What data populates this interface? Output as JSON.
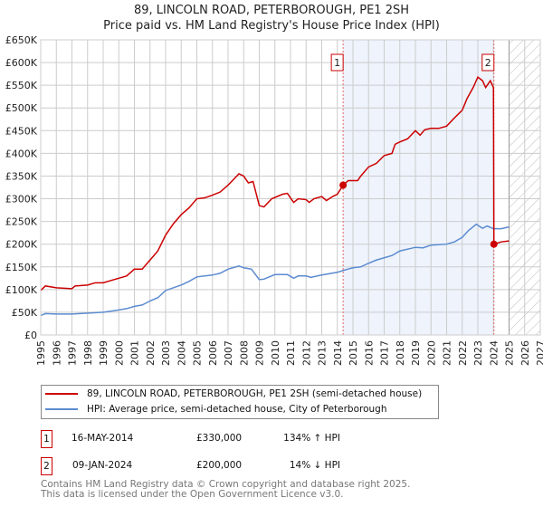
{
  "chart_data": {
    "type": "line",
    "title": "89, LINCOLN ROAD, PETERBOROUGH, PE1 2SH",
    "subtitle": "Price paid vs. HM Land Registry's House Price Index (HPI)",
    "xlim": [
      1995,
      2027
    ],
    "ylim": [
      0,
      650000
    ],
    "x_ticks": [
      "1995",
      "1996",
      "1997",
      "1998",
      "1999",
      "2000",
      "2001",
      "2002",
      "2003",
      "2004",
      "2005",
      "2006",
      "2007",
      "2008",
      "2009",
      "2010",
      "2011",
      "2012",
      "2013",
      "2014",
      "2015",
      "2016",
      "2017",
      "2018",
      "2019",
      "2020",
      "2021",
      "2022",
      "2023",
      "2024",
      "2025",
      "2026",
      "2027"
    ],
    "y_ticks": [
      "£0",
      "£50K",
      "£100K",
      "£150K",
      "£200K",
      "£250K",
      "£300K",
      "£350K",
      "£400K",
      "£450K",
      "£500K",
      "£550K",
      "£600K",
      "£650K"
    ],
    "grid": true,
    "shaded_range": [
      2014.37,
      2024.03
    ],
    "forecast_hatch_from": 2025.0,
    "series": [
      {
        "name": "89, LINCOLN ROAD, PETERBOROUGH, PE1 2SH (semi-detached house)",
        "color": "#cc0000",
        "x": [
          1995,
          1995.3,
          1996,
          1997,
          1997.2,
          1998,
          1998.5,
          1999,
          2000,
          2000.5,
          2001,
          2001.5,
          2002,
          2002.5,
          2003,
          2003.5,
          2004,
          2004.5,
          2005,
          2005.5,
          2006,
          2006.5,
          2007,
          2007.5,
          2007.7,
          2008,
          2008.3,
          2008.6,
          2009,
          2009.3,
          2009.8,
          2010.5,
          2010.8,
          2011.2,
          2011.5,
          2012,
          2012.2,
          2012.5,
          2013,
          2013.3,
          2013.7,
          2014,
          2014.37,
          2014.7,
          2015.3,
          2015.5,
          2016,
          2016.5,
          2017,
          2017.5,
          2017.7,
          2018,
          2018.5,
          2019,
          2019.3,
          2019.6,
          2020,
          2020.5,
          2021,
          2021.5,
          2022,
          2022.3,
          2022.7,
          2023,
          2023.3,
          2023.5,
          2023.8,
          2024.0,
          2024.03,
          2024.5,
          2025.0
        ],
        "y": [
          98000,
          108000,
          104000,
          102000,
          108000,
          110000,
          115000,
          115000,
          125000,
          130000,
          145000,
          145000,
          165000,
          185000,
          220000,
          245000,
          265000,
          280000,
          300000,
          302000,
          308000,
          315000,
          330000,
          348000,
          355000,
          350000,
          335000,
          338000,
          285000,
          282000,
          300000,
          310000,
          312000,
          292000,
          300000,
          298000,
          292000,
          300000,
          305000,
          296000,
          305000,
          310000,
          330000,
          340000,
          340000,
          350000,
          370000,
          378000,
          395000,
          400000,
          420000,
          425000,
          432000,
          450000,
          440000,
          452000,
          455000,
          455000,
          460000,
          478000,
          495000,
          520000,
          545000,
          568000,
          560000,
          545000,
          560000,
          545000,
          200000,
          205000,
          207000
        ]
      },
      {
        "name": "HPI: Average price, semi-detached house, City of Peterborough",
        "color": "#5b8bd0",
        "x": [
          1995,
          1995.3,
          1996,
          1997,
          1998,
          1999,
          2000,
          2000.5,
          2001,
          2001.5,
          2002,
          2002.5,
          2003,
          2004,
          2004.5,
          2005,
          2006,
          2006.5,
          2007,
          2007.7,
          2008,
          2008.5,
          2009,
          2009.3,
          2010,
          2010.8,
          2011.2,
          2011.5,
          2012,
          2012.3,
          2013,
          2014,
          2014.37,
          2015,
          2015.5,
          2016,
          2016.5,
          2017,
          2017.5,
          2018,
          2019,
          2019.5,
          2020,
          2021,
          2021.5,
          2022,
          2022.4,
          2022.9,
          2023.3,
          2023.6,
          2024,
          2024.5,
          2025
        ],
        "y": [
          43000,
          47000,
          46000,
          46000,
          48000,
          50000,
          55000,
          58000,
          63000,
          66000,
          75000,
          82000,
          98000,
          110000,
          118000,
          128000,
          132000,
          136000,
          145000,
          152000,
          148000,
          145000,
          122000,
          123000,
          133000,
          133000,
          125000,
          130000,
          130000,
          127000,
          132000,
          138000,
          142000,
          148000,
          150000,
          158000,
          165000,
          170000,
          175000,
          185000,
          193000,
          192000,
          198000,
          200000,
          205000,
          215000,
          230000,
          244000,
          235000,
          240000,
          234000,
          234000,
          238000
        ]
      }
    ],
    "sales": [
      {
        "label": "1",
        "date": "16-MAY-2014",
        "price": "£330,000",
        "hpi": "134% ↑ HPI",
        "x": 2014.37,
        "y": 330000
      },
      {
        "label": "2",
        "date": "09-JAN-2024",
        "price": "£200,000",
        "hpi": "14% ↓ HPI",
        "x": 2024.03,
        "y": 200000
      }
    ]
  },
  "footer": {
    "line1": "Contains HM Land Registry data © Crown copyright and database right 2025.",
    "line2": "This data is licensed under the Open Government Licence v3.0."
  }
}
